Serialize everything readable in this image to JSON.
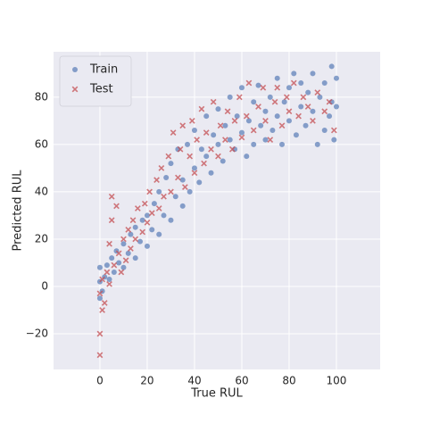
{
  "chart_data": {
    "type": "scatter",
    "xlabel": "True RUL",
    "ylabel": "Predicted RUL",
    "xlim": [
      -19.6,
      118.5
    ],
    "ylim": [
      -35.1,
      99.2
    ],
    "xticks": [
      0,
      20,
      40,
      60,
      80,
      100
    ],
    "yticks": [
      {
        "value": -20,
        "label": "−20"
      },
      0,
      20,
      40,
      60,
      80
    ],
    "grid": true,
    "legend": "upper left",
    "series": [
      {
        "name": "Train",
        "color": "#4c72b0",
        "marker": "circle",
        "x": [
          0,
          0,
          0,
          1,
          2,
          3,
          4,
          5,
          6,
          7,
          8,
          10,
          10,
          12,
          13,
          15,
          15,
          17,
          18,
          20,
          20,
          22,
          23,
          25,
          25,
          27,
          28,
          30,
          30,
          32,
          33,
          35,
          35,
          37,
          38,
          40,
          40,
          42,
          43,
          45,
          45,
          47,
          48,
          50,
          50,
          52,
          53,
          55,
          55,
          57,
          58,
          60,
          60,
          62,
          63,
          65,
          65,
          67,
          68,
          70,
          70,
          72,
          73,
          75,
          75,
          77,
          78,
          80,
          80,
          82,
          83,
          85,
          85,
          87,
          88,
          90,
          90,
          92,
          93,
          95,
          95,
          97,
          98,
          98,
          100,
          100,
          99
        ],
        "values": [
          -5,
          2,
          8,
          -2,
          4,
          9,
          3,
          12,
          6,
          15,
          10,
          8,
          18,
          14,
          22,
          12,
          25,
          19,
          28,
          17,
          30,
          24,
          35,
          22,
          40,
          30,
          46,
          28,
          52,
          38,
          58,
          34,
          45,
          60,
          40,
          50,
          66,
          44,
          58,
          55,
          72,
          48,
          64,
          60,
          75,
          53,
          68,
          62,
          80,
          58,
          72,
          65,
          84,
          55,
          70,
          78,
          60,
          85,
          68,
          74,
          62,
          80,
          66,
          88,
          72,
          60,
          78,
          70,
          84,
          90,
          64,
          76,
          86,
          68,
          82,
          74,
          90,
          60,
          80,
          86,
          66,
          72,
          93,
          78,
          76,
          88,
          62
        ]
      },
      {
        "name": "Test",
        "color": "#c44e52",
        "marker": "x",
        "x": [
          0,
          0,
          1,
          0,
          1,
          2,
          3,
          4,
          4,
          5,
          5,
          6,
          7,
          8,
          9,
          10,
          11,
          12,
          13,
          14,
          15,
          16,
          18,
          19,
          20,
          21,
          22,
          24,
          25,
          26,
          27,
          29,
          30,
          31,
          33,
          34,
          35,
          36,
          38,
          39,
          40,
          41,
          43,
          44,
          45,
          47,
          48,
          50,
          51,
          53,
          54,
          56,
          57,
          59,
          60,
          62,
          63,
          65,
          67,
          69,
          70,
          72,
          74,
          75,
          77,
          79,
          80,
          82,
          84,
          86,
          88,
          90,
          92,
          95,
          97,
          99
        ],
        "values": [
          -29,
          -20,
          -10,
          -3,
          3,
          -7,
          6,
          1,
          18,
          38,
          28,
          9,
          34,
          14,
          6,
          20,
          11,
          24,
          16,
          28,
          20,
          33,
          23,
          35,
          27,
          40,
          31,
          45,
          33,
          50,
          38,
          55,
          40,
          65,
          46,
          58,
          68,
          42,
          55,
          70,
          48,
          62,
          75,
          52,
          65,
          58,
          78,
          55,
          68,
          62,
          74,
          58,
          70,
          80,
          63,
          72,
          86,
          66,
          76,
          84,
          70,
          62,
          78,
          84,
          68,
          80,
          74,
          86,
          72,
          80,
          76,
          70,
          82,
          74,
          78,
          66
        ]
      }
    ]
  }
}
